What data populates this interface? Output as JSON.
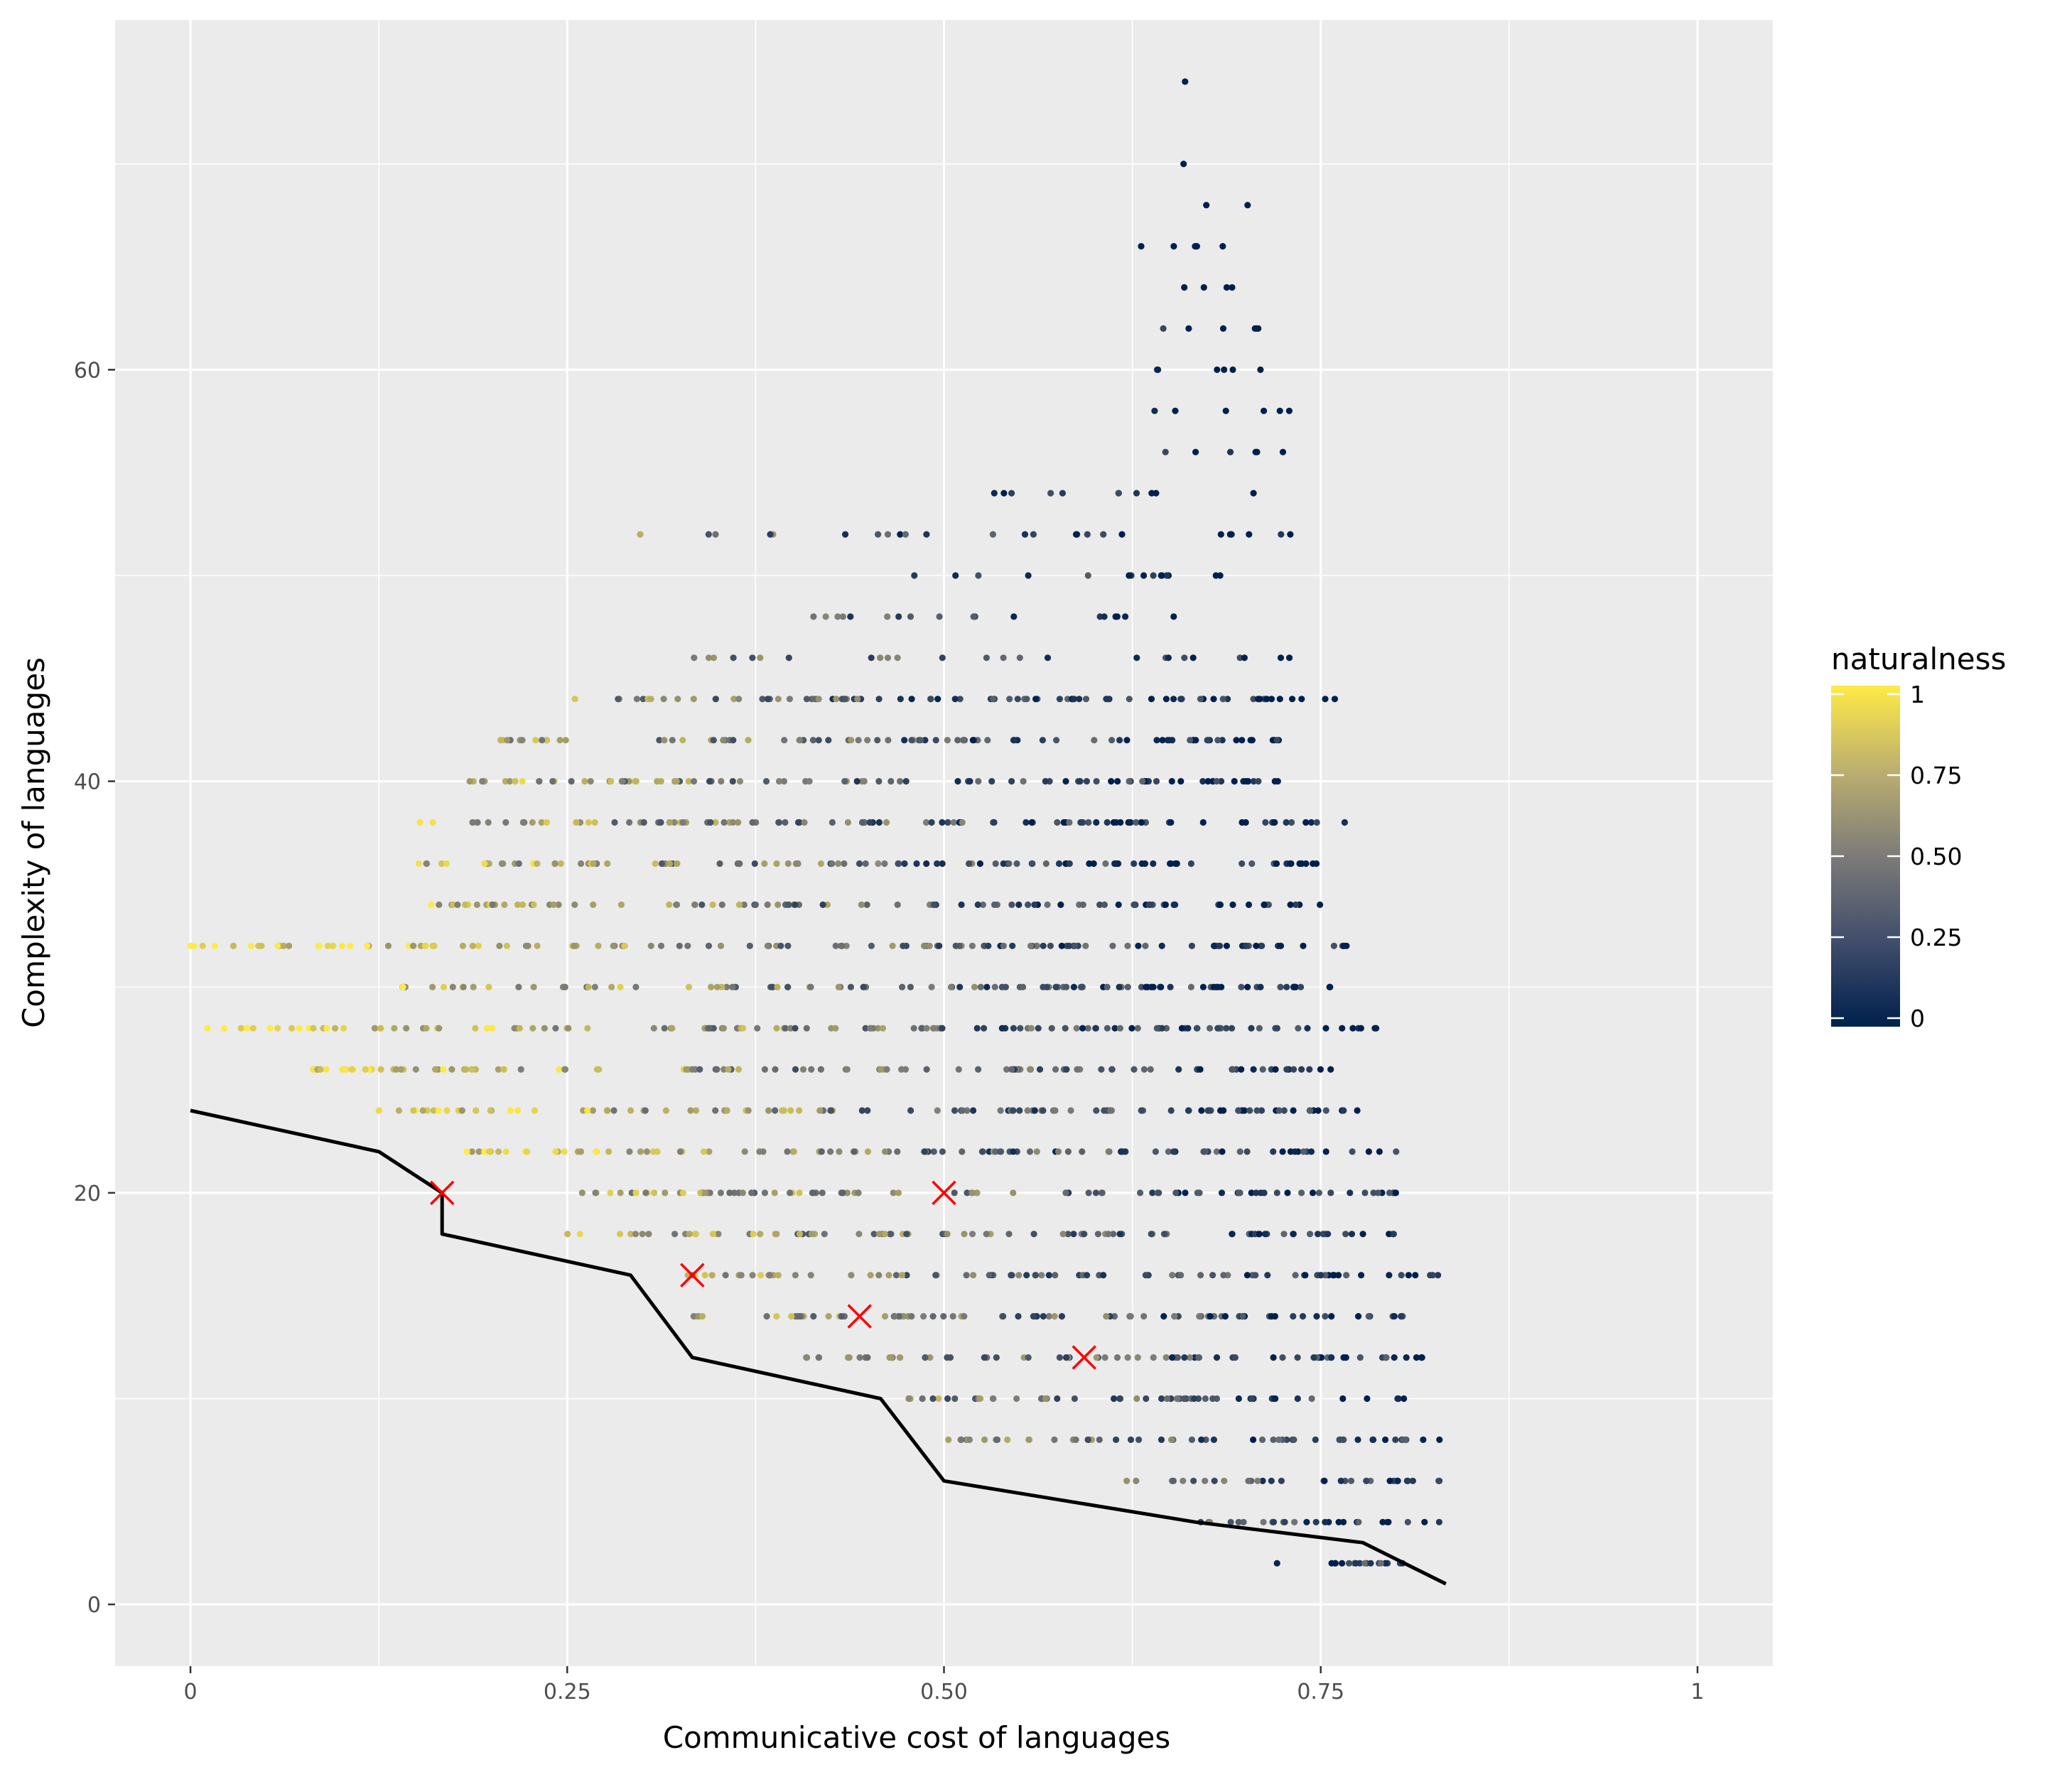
{
  "chart_data": {
    "type": "scatter",
    "title": "",
    "xlabel": "Communicative cost of languages",
    "ylabel": "Complexity of languages",
    "xlim": [
      -0.05,
      1.05
    ],
    "ylim": [
      -3,
      77
    ],
    "x_ticks": [
      0,
      0.25,
      0.5,
      0.75,
      1
    ],
    "x_tick_labels": [
      "0",
      "0.25",
      "0.50",
      "0.75",
      "1"
    ],
    "y_ticks": [
      0,
      20,
      40,
      60
    ],
    "y_tick_labels": [
      "0",
      "20",
      "40",
      "60"
    ],
    "grid": true,
    "panel_background": "#ebebeb",
    "color_scale": {
      "title": "naturalness",
      "low_color": "#00204d",
      "mid_color": "#7c7b78",
      "high_color": "#ffea46",
      "breaks": [
        0,
        0.25,
        0.5,
        0.75,
        1
      ],
      "labels": [
        "0",
        "0.25",
        "0.50",
        "0.75",
        "1"
      ]
    },
    "point_cloud_note_free": true,
    "cloud_rows": [
      {
        "y": 32,
        "x_min": 0.0,
        "x_max": 0.77
      },
      {
        "y": 30,
        "x_min": 0.14,
        "x_max": 0.76
      },
      {
        "y": 28,
        "x_min": 0.0,
        "x_max": 0.79
      },
      {
        "y": 26,
        "x_min": 0.08,
        "x_max": 0.77
      },
      {
        "y": 24,
        "x_min": 0.125,
        "x_max": 0.78
      },
      {
        "y": 22,
        "x_min": 0.18,
        "x_max": 0.8
      },
      {
        "y": 20,
        "x_min": 0.25,
        "x_max": 0.81
      },
      {
        "y": 18,
        "x_min": 0.25,
        "x_max": 0.81
      },
      {
        "y": 16,
        "x_min": 0.33,
        "x_max": 0.83
      },
      {
        "y": 14,
        "x_min": 0.33,
        "x_max": 0.81
      },
      {
        "y": 12,
        "x_min": 0.4,
        "x_max": 0.83
      },
      {
        "y": 10,
        "x_min": 0.47,
        "x_max": 0.81
      },
      {
        "y": 8,
        "x_min": 0.5,
        "x_max": 0.83
      },
      {
        "y": 6,
        "x_min": 0.62,
        "x_max": 0.83
      },
      {
        "y": 4,
        "x_min": 0.67,
        "x_max": 0.83
      },
      {
        "y": 2,
        "x_min": 0.72,
        "x_max": 0.83
      },
      {
        "y": 34,
        "x_min": 0.15,
        "x_max": 0.75
      },
      {
        "y": 36,
        "x_min": 0.14,
        "x_max": 0.76
      },
      {
        "y": 38,
        "x_min": 0.15,
        "x_max": 0.77
      },
      {
        "y": 40,
        "x_min": 0.18,
        "x_max": 0.74
      },
      {
        "y": 42,
        "x_min": 0.2,
        "x_max": 0.73
      },
      {
        "y": 44,
        "x_min": 0.25,
        "x_max": 0.76
      },
      {
        "y": 46,
        "x_min": 0.3,
        "x_max": 0.74
      },
      {
        "y": 48,
        "x_min": 0.4,
        "x_max": 0.72
      },
      {
        "y": 50,
        "x_min": 0.48,
        "x_max": 0.74
      },
      {
        "y": 52,
        "x_min": 0.29,
        "x_max": 0.73
      },
      {
        "y": 54,
        "x_min": 0.53,
        "x_max": 0.73
      },
      {
        "y": 56,
        "x_min": 0.63,
        "x_max": 0.73
      },
      {
        "y": 58,
        "x_min": 0.62,
        "x_max": 0.73
      },
      {
        "y": 60,
        "x_min": 0.62,
        "x_max": 0.73
      },
      {
        "y": 62,
        "x_min": 0.61,
        "x_max": 0.72
      },
      {
        "y": 64,
        "x_min": 0.645,
        "x_max": 0.71
      },
      {
        "y": 66,
        "x_min": 0.63,
        "x_max": 0.72
      },
      {
        "y": 68,
        "x_min": 0.67,
        "x_max": 0.705
      },
      {
        "y": 70,
        "x_min": 0.655,
        "x_max": 0.67
      },
      {
        "y": 74,
        "x_min": 0.66,
        "x_max": 0.66
      }
    ],
    "frontier_line": {
      "x": [
        0,
        0.125,
        0.167,
        0.167,
        0.292,
        0.333,
        0.458,
        0.5,
        0.667,
        0.778,
        0.833
      ],
      "y": [
        24,
        22,
        20,
        18,
        16,
        12,
        10,
        6,
        4,
        3,
        1
      ]
    },
    "highlight_points": {
      "marker": "x",
      "color": "#ff0000",
      "x": [
        0.167,
        0.333,
        0.444,
        0.5,
        0.593
      ],
      "y": [
        20,
        16,
        14,
        20,
        12
      ]
    }
  }
}
